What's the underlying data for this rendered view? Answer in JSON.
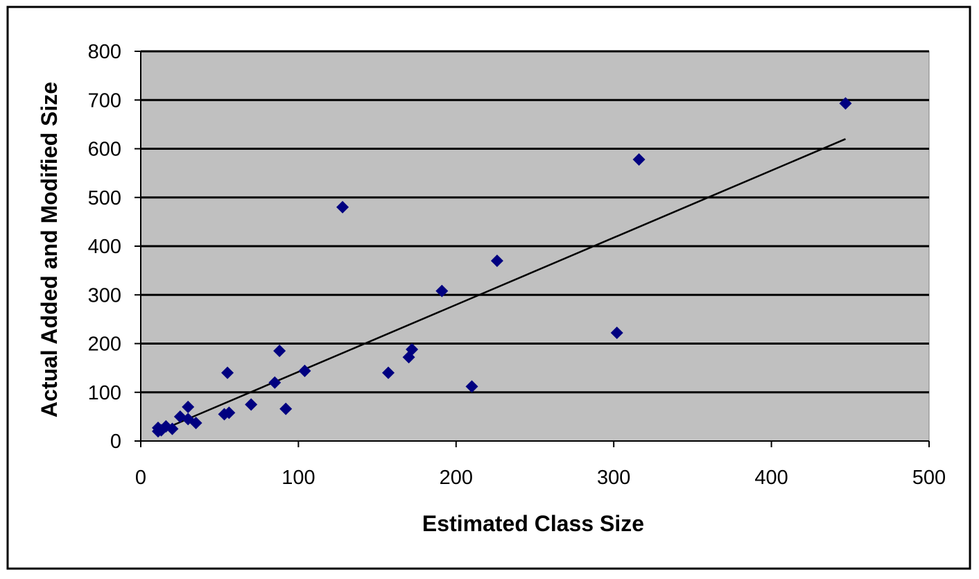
{
  "chart_data": {
    "type": "scatter",
    "title": "",
    "xlabel": "Estimated Class Size",
    "ylabel": "Actual Added and Modified Size",
    "xlim": [
      0,
      500
    ],
    "ylim": [
      0,
      800
    ],
    "x_ticks": [
      "0",
      "100",
      "200",
      "300",
      "400",
      "500"
    ],
    "y_ticks": [
      "0",
      "100",
      "200",
      "300",
      "400",
      "500",
      "600",
      "700",
      "800"
    ],
    "grid": "horizontal",
    "legend": "none",
    "colors": {
      "plot_background": "#c0c0c0",
      "marker": "#000080",
      "trendline": "#000000",
      "gridline": "#000000"
    },
    "marker_shape": "diamond",
    "trendline": {
      "type": "linear",
      "x": [
        10,
        447
      ],
      "y": [
        18,
        620
      ]
    },
    "points": [
      {
        "x": 11,
        "y": 27
      },
      {
        "x": 11,
        "y": 20
      },
      {
        "x": 13,
        "y": 22
      },
      {
        "x": 16,
        "y": 30
      },
      {
        "x": 20,
        "y": 25
      },
      {
        "x": 25,
        "y": 50
      },
      {
        "x": 30,
        "y": 70
      },
      {
        "x": 30,
        "y": 45
      },
      {
        "x": 35,
        "y": 37
      },
      {
        "x": 53,
        "y": 55
      },
      {
        "x": 55,
        "y": 140
      },
      {
        "x": 56,
        "y": 58
      },
      {
        "x": 70,
        "y": 75
      },
      {
        "x": 85,
        "y": 120
      },
      {
        "x": 88,
        "y": 185
      },
      {
        "x": 92,
        "y": 66
      },
      {
        "x": 104,
        "y": 144
      },
      {
        "x": 128,
        "y": 480
      },
      {
        "x": 157,
        "y": 140
      },
      {
        "x": 170,
        "y": 172
      },
      {
        "x": 172,
        "y": 188
      },
      {
        "x": 191,
        "y": 308
      },
      {
        "x": 210,
        "y": 112
      },
      {
        "x": 226,
        "y": 370
      },
      {
        "x": 302,
        "y": 222
      },
      {
        "x": 316,
        "y": 578
      },
      {
        "x": 447,
        "y": 693
      }
    ]
  }
}
